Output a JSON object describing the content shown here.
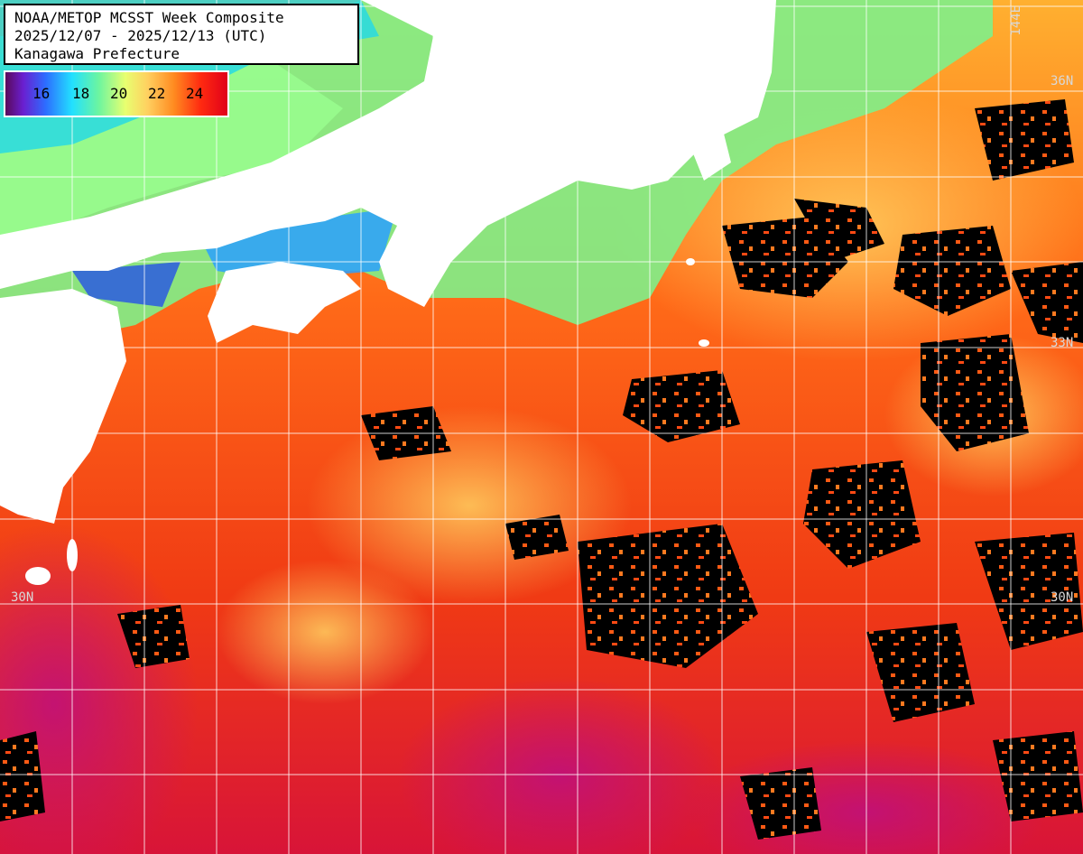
{
  "title": {
    "line1": "NOAA/METOP MCSST Week Composite",
    "line2": "2025/12/07 - 2025/12/13 (UTC)",
    "line3": "Kanagawa Prefecture"
  },
  "legend": {
    "ticks": [
      "16",
      "18",
      "20",
      "22",
      "24"
    ]
  },
  "grid_labels": {
    "lat_30_left": "30N",
    "lat_30_right": "30N",
    "lat_36_right": "36N",
    "lat_33_right": "33N",
    "lon_144_top": "144E"
  },
  "colors": {
    "land": "#ffffff",
    "cloud": "#000000",
    "grid": "#ffffff",
    "warm": "#ff5a14",
    "hot": "#e81a22",
    "cool": "#7ff08a",
    "cold": "#2aa0ff",
    "magenta": "#c8106a"
  }
}
